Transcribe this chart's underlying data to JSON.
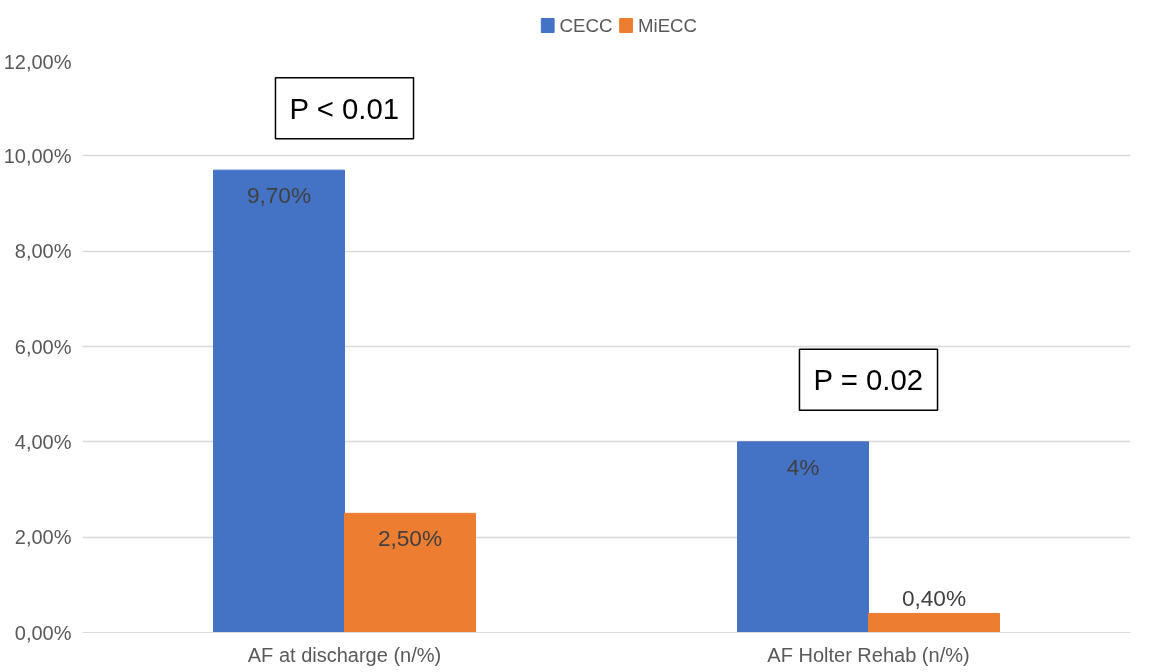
{
  "chart_data": {
    "type": "bar",
    "categories": [
      "AF at discharge (n/%)",
      "AF Holter Rehab (n/%)"
    ],
    "series": [
      {
        "name": "CECC",
        "color": "#4472c4",
        "values": [
          9.7,
          4
        ],
        "value_labels": [
          "9,70%",
          "4%"
        ]
      },
      {
        "name": "MiECC",
        "color": "#ed7d31",
        "values": [
          2.5,
          0.4
        ],
        "value_labels": [
          "2,50%",
          "0,40%"
        ]
      }
    ],
    "ylim": [
      0,
      12
    ],
    "yticks": [
      {
        "value": 0,
        "label": "0,00%"
      },
      {
        "value": 2,
        "label": "2,00%"
      },
      {
        "value": 4,
        "label": "4,00%"
      },
      {
        "value": 6,
        "label": "6,00%"
      },
      {
        "value": 8,
        "label": "8,00%"
      },
      {
        "value": 10,
        "label": "10,00%"
      },
      {
        "value": 12,
        "label": "12,00%"
      }
    ],
    "grid": "y",
    "legend": "top",
    "annotations": [
      "P < 0.01",
      "P = 0.02"
    ]
  }
}
